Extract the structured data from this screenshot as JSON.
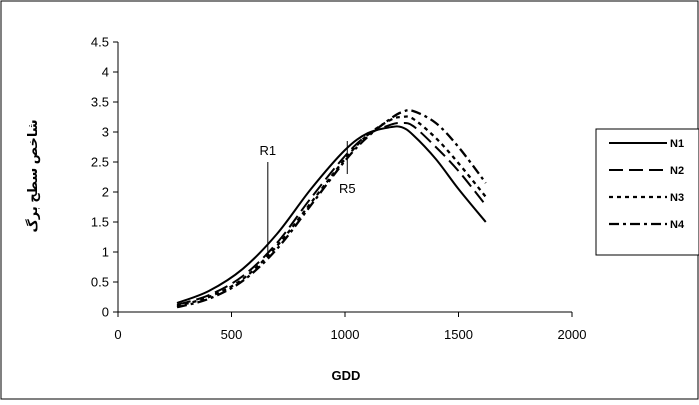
{
  "chart_data": {
    "type": "line",
    "xlabel": "GDD",
    "ylabel": "شاخص سطح برگ",
    "xlim": [
      0,
      2000
    ],
    "ylim": [
      0,
      4.5
    ],
    "x_ticks": [
      0,
      500,
      1000,
      1500,
      2000
    ],
    "y_ticks": [
      0,
      0.5,
      1,
      1.5,
      2,
      2.5,
      3,
      3.5,
      4,
      4.5
    ],
    "x_tick_labels": [
      "0",
      "500",
      "1000",
      "1500",
      "2000"
    ],
    "y_tick_labels": [
      "0",
      "0.5",
      "1",
      "1.5",
      "2",
      "2.5",
      "3",
      "3.5",
      "4",
      "4.5"
    ],
    "grid": false,
    "legend_position": "right",
    "series": [
      {
        "name": "N1",
        "dash": "solid",
        "x": [
          260,
          400,
          550,
          700,
          850,
          1000,
          1100,
          1200,
          1250,
          1300,
          1400,
          1500,
          1620
        ],
        "y": [
          0.15,
          0.35,
          0.72,
          1.3,
          2.05,
          2.7,
          2.98,
          3.08,
          3.08,
          2.95,
          2.55,
          2.05,
          1.5
        ]
      },
      {
        "name": "N2",
        "dash": "long-dash",
        "x": [
          260,
          400,
          550,
          700,
          850,
          1000,
          1100,
          1200,
          1250,
          1300,
          1400,
          1500,
          1620
        ],
        "y": [
          0.12,
          0.28,
          0.6,
          1.15,
          1.9,
          2.6,
          2.95,
          3.12,
          3.15,
          3.1,
          2.75,
          2.35,
          1.78
        ]
      },
      {
        "name": "N3",
        "dash": "short-dash",
        "x": [
          260,
          400,
          550,
          700,
          850,
          1000,
          1100,
          1200,
          1250,
          1300,
          1400,
          1500,
          1620
        ],
        "y": [
          0.1,
          0.25,
          0.55,
          1.1,
          1.82,
          2.55,
          2.95,
          3.2,
          3.25,
          3.22,
          2.9,
          2.48,
          1.92
        ]
      },
      {
        "name": "N4",
        "dash": "dash-dot",
        "x": [
          260,
          400,
          550,
          700,
          850,
          1000,
          1100,
          1200,
          1250,
          1300,
          1400,
          1500,
          1620
        ],
        "y": [
          0.08,
          0.22,
          0.52,
          1.05,
          1.78,
          2.52,
          2.92,
          3.22,
          3.33,
          3.35,
          3.15,
          2.75,
          2.15
        ]
      }
    ],
    "annotations": [
      {
        "label": "R1",
        "x": 660,
        "y_from": 0.9,
        "y_to": 2.5,
        "label_position": "above"
      },
      {
        "label": "R5",
        "x": 1010,
        "y_from": 2.3,
        "y_to": 2.85,
        "label_position": "below"
      }
    ]
  }
}
